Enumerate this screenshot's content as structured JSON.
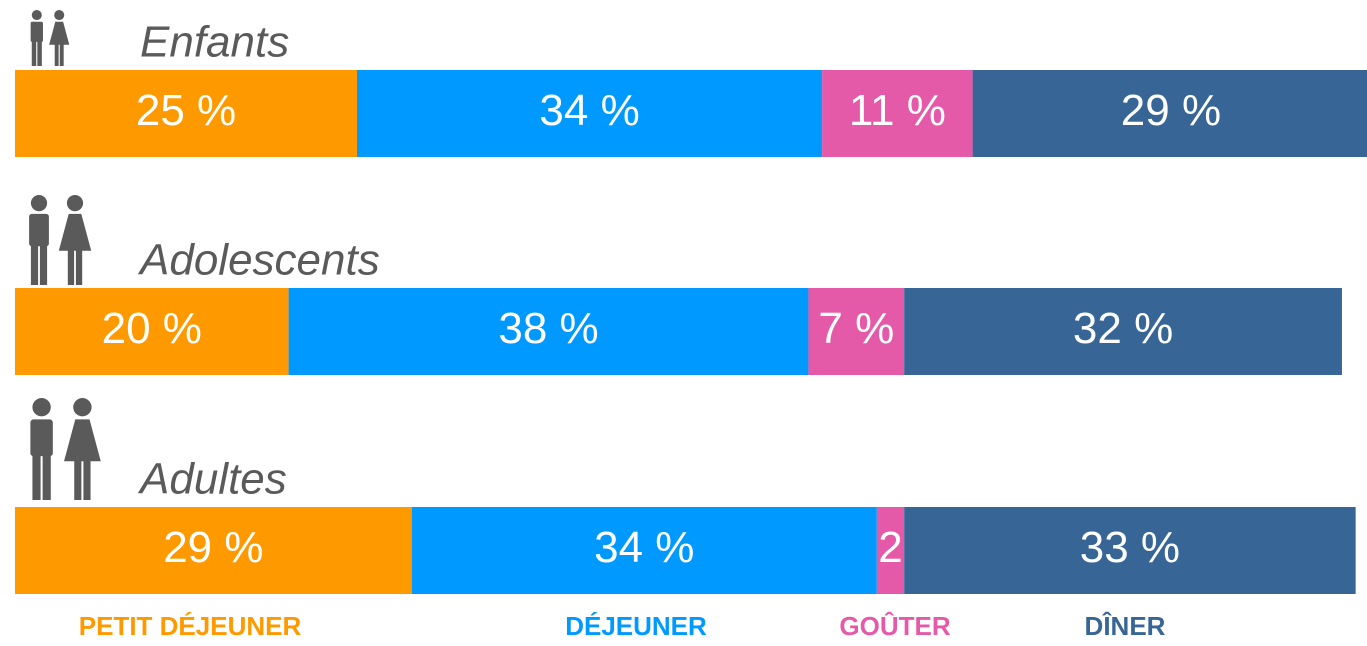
{
  "chart_data": {
    "type": "stacked-bar",
    "categories": [
      "Enfants",
      "Adolescents",
      "Adultes"
    ],
    "series": [
      {
        "name": "PETIT DÉJEUNER",
        "color": "#ff9900",
        "values": [
          25,
          20,
          29
        ],
        "value_labels": [
          "25 %",
          "20 %",
          "29 %"
        ]
      },
      {
        "name": "DÉJEUNER",
        "color": "#0099ff",
        "values": [
          34,
          38,
          34
        ],
        "value_labels": [
          "34 %",
          "38 %",
          "34 %"
        ]
      },
      {
        "name": "GOÛTER",
        "color": "#e55aa8",
        "values": [
          11,
          7,
          2
        ],
        "value_labels": [
          "11 %",
          "7 %",
          "2"
        ]
      },
      {
        "name": "DÎNER",
        "color": "#376595",
        "values": [
          29,
          32,
          33
        ],
        "value_labels": [
          "29 %",
          "32 %",
          "33 %"
        ]
      }
    ]
  }
}
